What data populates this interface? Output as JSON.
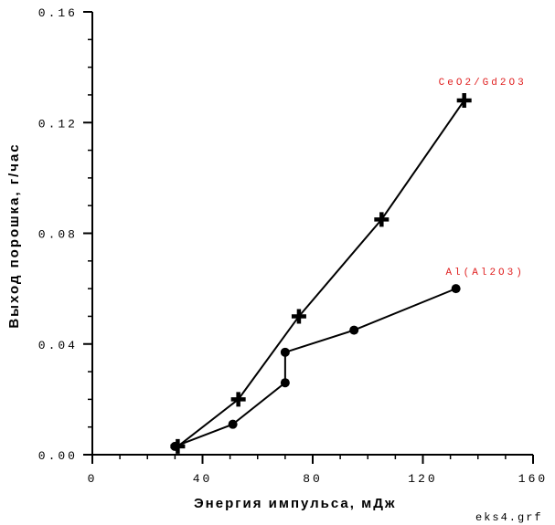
{
  "chart_data": {
    "type": "line",
    "xlabel": "Энергия импульса, мДж",
    "ylabel": "Выход порошка, г/час",
    "xlim": [
      0,
      160
    ],
    "ylim": [
      0,
      0.16
    ],
    "x_ticks": [
      "0",
      "40",
      "80",
      "120",
      "160"
    ],
    "y_ticks": [
      "0.00",
      "0.04",
      "0.08",
      "0.12",
      "0.16"
    ],
    "x_tick_values": [
      0,
      40,
      80,
      120,
      160
    ],
    "y_tick_values": [
      0,
      0.04,
      0.08,
      0.12,
      0.16
    ],
    "x_minor_step": 10,
    "y_minor_step": 0.01,
    "grid": false,
    "series": [
      {
        "name": "CeO2/Gd2O3",
        "marker": "cross",
        "label_color": "#e02020",
        "points": [
          [
            31,
            0.003
          ],
          [
            53,
            0.02
          ],
          [
            75,
            0.05
          ],
          [
            105,
            0.085
          ],
          [
            135,
            0.128
          ]
        ]
      },
      {
        "name": "Al(Al2O3)",
        "marker": "circle",
        "label_color": "#e02020",
        "points": [
          [
            30,
            0.003
          ],
          [
            51,
            0.011
          ],
          [
            70,
            0.026
          ],
          [
            70,
            0.037
          ],
          [
            95,
            0.045
          ],
          [
            132,
            0.06
          ]
        ]
      }
    ],
    "footer": "eks4.grf"
  }
}
